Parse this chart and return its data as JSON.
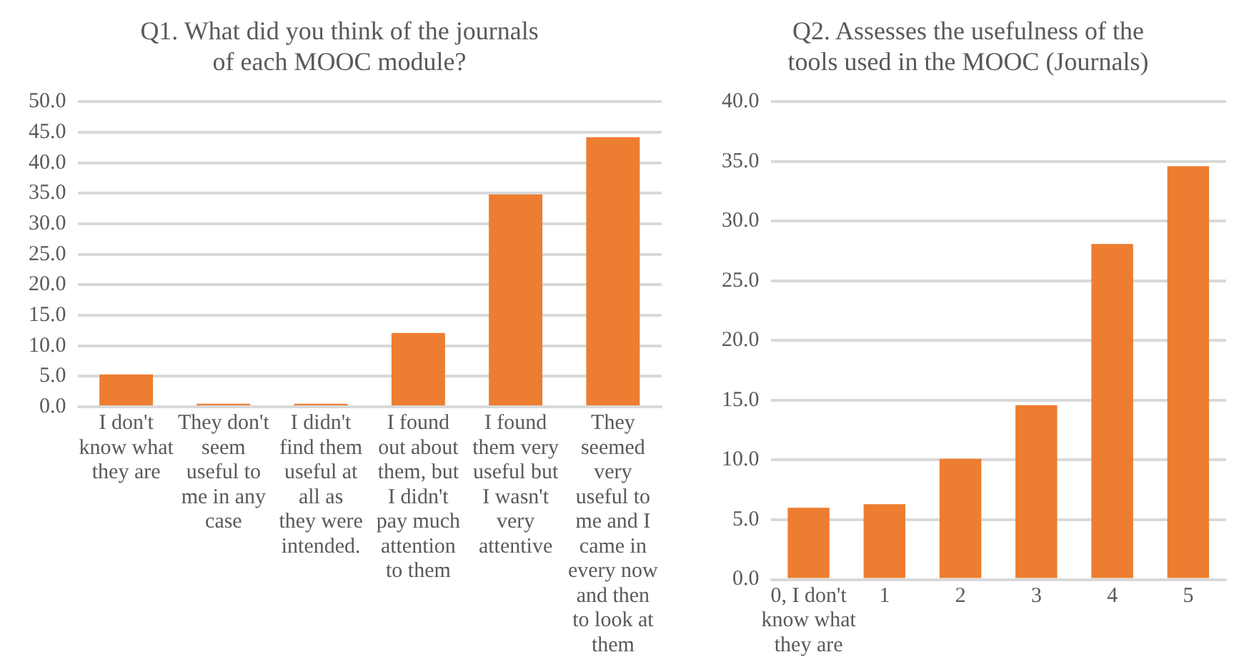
{
  "chart_data": [
    {
      "type": "bar",
      "title": "Q1. What did you think of the journals of each MOOC module?",
      "categories": [
        "I don't know what they are",
        "They don't seem useful to me in any case",
        "I didn't find them useful at all as they were intended.",
        "I found out about them, but I didn't pay much attention to them",
        "I found them very useful but I wasn't very attentive",
        "They seemed very useful to me and I came in every now and then to look at them"
      ],
      "values": [
        5.3,
        0.5,
        0.5,
        12.1,
        34.8,
        44.2
      ],
      "color": "#ed7d31",
      "ylim": [
        0,
        50
      ],
      "yticks": [
        {
          "value": 0,
          "label": "0.0"
        },
        {
          "value": 5,
          "label": "5.0"
        },
        {
          "value": 10,
          "label": "10.0"
        },
        {
          "value": 15,
          "label": "15.0"
        },
        {
          "value": 20,
          "label": "20.0"
        },
        {
          "value": 25,
          "label": "25.0"
        },
        {
          "value": 30,
          "label": "30.0"
        },
        {
          "value": 35,
          "label": "35.0"
        },
        {
          "value": 40,
          "label": "40.0"
        },
        {
          "value": 45,
          "label": "45.0"
        },
        {
          "value": 50,
          "label": "50.0"
        }
      ],
      "grid": "y"
    },
    {
      "type": "bar",
      "title": "Q2. Assesses the usefulness of the tools used in the MOOC (Journals)",
      "categories": [
        "0, I don't know what they are",
        "1",
        "2",
        "3",
        "4",
        "5"
      ],
      "values": [
        6.0,
        6.3,
        10.1,
        14.6,
        28.1,
        34.6
      ],
      "color": "#ed7d31",
      "ylim": [
        0,
        40
      ],
      "yticks": [
        {
          "value": 0,
          "label": "0.0"
        },
        {
          "value": 5,
          "label": "5.0"
        },
        {
          "value": 10,
          "label": "10.0"
        },
        {
          "value": 15,
          "label": "15.0"
        },
        {
          "value": 20,
          "label": "20.0"
        },
        {
          "value": 25,
          "label": "25.0"
        },
        {
          "value": 30,
          "label": "30.0"
        },
        {
          "value": 35,
          "label": "35.0"
        },
        {
          "value": 40,
          "label": "40.0"
        }
      ],
      "grid": "y"
    }
  ]
}
